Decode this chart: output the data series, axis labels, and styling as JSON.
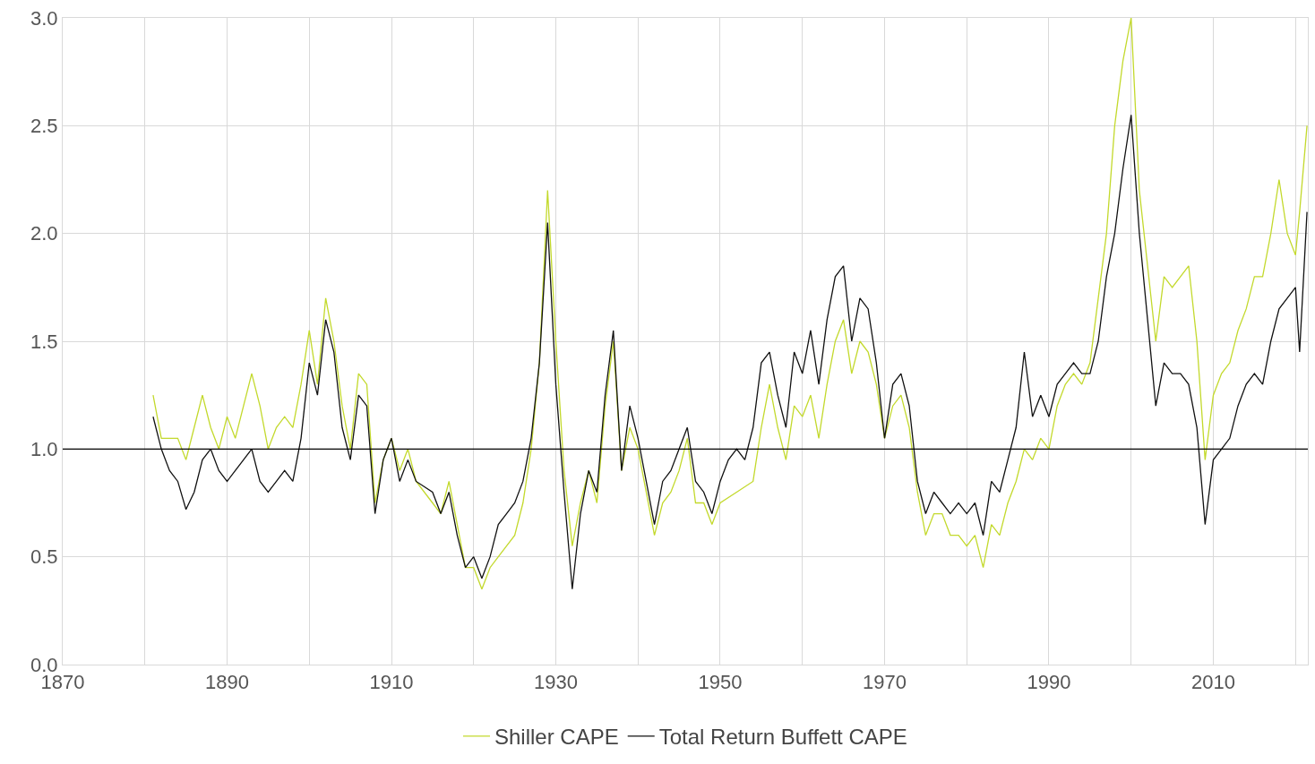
{
  "chart_data": {
    "type": "line",
    "xlim": [
      1870,
      2021.5
    ],
    "xticks": [
      1870,
      {
        "value": 1880,
        "label": null
      },
      1890,
      {
        "value": 1900,
        "label": null
      },
      1910,
      {
        "value": 1920,
        "label": null
      },
      1930,
      {
        "value": 1940,
        "label": null
      },
      1950,
      {
        "value": 1960,
        "label": null
      },
      1970,
      {
        "value": 1980,
        "label": null
      },
      1990,
      {
        "value": 2000,
        "label": null
      },
      2010,
      {
        "value": 2020,
        "label": null
      }
    ],
    "ylim": [
      0,
      3
    ],
    "yticks": [
      {
        "value": 0,
        "label": "0.0"
      },
      0.5,
      {
        "value": 1,
        "label": "1.0"
      },
      1.5,
      {
        "value": 2,
        "label": "2.0"
      },
      2.5,
      {
        "value": 3,
        "label": "3.0"
      }
    ],
    "grid": true,
    "legend": "bottom",
    "marker": "none",
    "line_style": "solid",
    "ref_lines": [
      {
        "axis": "y",
        "value": 1,
        "label": null,
        "color": "#000000"
      }
    ],
    "series": [
      {
        "name": "Shiller CAPE",
        "color": "#c3d92c",
        "x": [
          1881,
          1882,
          1884,
          1885,
          1886,
          1887,
          1888,
          1889,
          1890,
          1891,
          1893,
          1894,
          1895,
          1896,
          1897,
          1898,
          1899,
          1900,
          1901,
          1902,
          1903,
          1904,
          1905,
          1906,
          1907,
          1908,
          1909,
          1910,
          1911,
          1912,
          1913,
          1915,
          1916,
          1917,
          1918,
          1919,
          1920,
          1921,
          1922,
          1923,
          1924,
          1925,
          1926,
          1927,
          1928,
          1929,
          1930,
          1931,
          1932,
          1933,
          1934,
          1935,
          1936,
          1937,
          1938,
          1939,
          1940,
          1941,
          1942,
          1943,
          1944,
          1945,
          1946,
          1947,
          1948,
          1949,
          1950,
          1952,
          1954,
          1955,
          1956,
          1957,
          1958,
          1959,
          1960,
          1961,
          1962,
          1963,
          1964,
          1965,
          1966,
          1967,
          1968,
          1969,
          1970,
          1971,
          1972,
          1973,
          1974,
          1975,
          1976,
          1977,
          1978,
          1979,
          1980,
          1981,
          1982,
          1983,
          1984,
          1985,
          1986,
          1987,
          1988,
          1989,
          1990,
          1991,
          1992,
          1993,
          1994,
          1995,
          1996,
          1997,
          1998,
          1999,
          2000,
          2001,
          2002,
          2003,
          2004,
          2005,
          2006,
          2007,
          2008,
          2009,
          2010,
          2011,
          2012,
          2013,
          2014,
          2015,
          2016,
          2017,
          2018,
          2019,
          2020,
          2020.5,
          2021.4
        ],
        "values": [
          1.25,
          1.05,
          1.05,
          0.95,
          1.1,
          1.25,
          1.1,
          1.0,
          1.15,
          1.05,
          1.35,
          1.2,
          1.0,
          1.1,
          1.15,
          1.1,
          1.3,
          1.55,
          1.3,
          1.7,
          1.5,
          1.2,
          1.0,
          1.35,
          1.3,
          0.75,
          0.95,
          1.05,
          0.9,
          1.0,
          0.85,
          0.75,
          0.7,
          0.85,
          0.65,
          0.45,
          0.45,
          0.35,
          0.45,
          0.5,
          0.55,
          0.6,
          0.75,
          1.0,
          1.4,
          2.2,
          1.5,
          0.9,
          0.55,
          0.75,
          0.9,
          0.75,
          1.2,
          1.5,
          0.9,
          1.1,
          1.0,
          0.8,
          0.6,
          0.75,
          0.8,
          0.9,
          1.05,
          0.75,
          0.75,
          0.65,
          0.75,
          0.8,
          0.85,
          1.1,
          1.3,
          1.1,
          0.95,
          1.2,
          1.15,
          1.25,
          1.05,
          1.3,
          1.5,
          1.6,
          1.35,
          1.5,
          1.45,
          1.3,
          1.05,
          1.2,
          1.25,
          1.1,
          0.8,
          0.6,
          0.7,
          0.7,
          0.6,
          0.6,
          0.55,
          0.6,
          0.45,
          0.65,
          0.6,
          0.75,
          0.85,
          1.0,
          0.95,
          1.05,
          1.0,
          1.2,
          1.3,
          1.35,
          1.3,
          1.4,
          1.7,
          2.0,
          2.5,
          2.8,
          3.0,
          2.2,
          1.85,
          1.5,
          1.8,
          1.75,
          1.8,
          1.85,
          1.5,
          0.95,
          1.25,
          1.35,
          1.4,
          1.55,
          1.65,
          1.8,
          1.8,
          2.0,
          2.25,
          2.0,
          1.9,
          2.1,
          2.5
        ]
      },
      {
        "name": "Total Return Buffett CAPE",
        "color": "#111111",
        "x": [
          1881,
          1882,
          1883,
          1884,
          1885,
          1886,
          1887,
          1888,
          1889,
          1890,
          1891,
          1892,
          1893,
          1894,
          1895,
          1896,
          1897,
          1898,
          1899,
          1900,
          1901,
          1902,
          1903,
          1904,
          1905,
          1906,
          1907,
          1908,
          1909,
          1910,
          1911,
          1912,
          1913,
          1915,
          1916,
          1917,
          1918,
          1919,
          1920,
          1921,
          1922,
          1923,
          1924,
          1925,
          1926,
          1927,
          1928,
          1929,
          1930,
          1931,
          1932,
          1933,
          1934,
          1935,
          1936,
          1937,
          1938,
          1939,
          1940,
          1941,
          1942,
          1943,
          1944,
          1945,
          1946,
          1947,
          1948,
          1949,
          1950,
          1951,
          1952,
          1953,
          1954,
          1955,
          1956,
          1957,
          1958,
          1959,
          1960,
          1961,
          1962,
          1963,
          1964,
          1965,
          1966,
          1967,
          1968,
          1969,
          1970,
          1971,
          1972,
          1973,
          1974,
          1975,
          1976,
          1977,
          1978,
          1979,
          1980,
          1981,
          1982,
          1983,
          1984,
          1985,
          1986,
          1987,
          1988,
          1989,
          1990,
          1991,
          1992,
          1993,
          1994,
          1995,
          1996,
          1997,
          1998,
          1999,
          2000,
          2001,
          2002,
          2003,
          2004,
          2005,
          2006,
          2007,
          2008,
          2009,
          2010,
          2011,
          2012,
          2013,
          2014,
          2015,
          2016,
          2017,
          2018,
          2019,
          2020,
          2020.5,
          2021.4
        ],
        "values": [
          1.15,
          1.0,
          0.9,
          0.85,
          0.72,
          0.8,
          0.95,
          1.0,
          0.9,
          0.85,
          0.9,
          0.95,
          1.0,
          0.85,
          0.8,
          0.85,
          0.9,
          0.85,
          1.05,
          1.4,
          1.25,
          1.6,
          1.45,
          1.1,
          0.95,
          1.25,
          1.2,
          0.7,
          0.95,
          1.05,
          0.85,
          0.95,
          0.85,
          0.8,
          0.7,
          0.8,
          0.6,
          0.45,
          0.5,
          0.4,
          0.5,
          0.65,
          0.7,
          0.75,
          0.85,
          1.05,
          1.4,
          2.05,
          1.3,
          0.8,
          0.35,
          0.7,
          0.9,
          0.8,
          1.25,
          1.55,
          0.9,
          1.2,
          1.05,
          0.85,
          0.65,
          0.85,
          0.9,
          1.0,
          1.1,
          0.85,
          0.8,
          0.7,
          0.85,
          0.95,
          1.0,
          0.95,
          1.1,
          1.4,
          1.45,
          1.25,
          1.1,
          1.45,
          1.35,
          1.55,
          1.3,
          1.6,
          1.8,
          1.85,
          1.5,
          1.7,
          1.65,
          1.4,
          1.05,
          1.3,
          1.35,
          1.2,
          0.85,
          0.7,
          0.8,
          0.75,
          0.7,
          0.75,
          0.7,
          0.75,
          0.6,
          0.85,
          0.8,
          0.95,
          1.1,
          1.45,
          1.15,
          1.25,
          1.15,
          1.3,
          1.35,
          1.4,
          1.35,
          1.35,
          1.5,
          1.8,
          2.0,
          2.3,
          2.55,
          2.0,
          1.6,
          1.2,
          1.4,
          1.35,
          1.35,
          1.3,
          1.1,
          0.65,
          0.95,
          1.0,
          1.05,
          1.2,
          1.3,
          1.35,
          1.3,
          1.5,
          1.65,
          1.7,
          1.75,
          1.45,
          2.1
        ]
      }
    ]
  }
}
